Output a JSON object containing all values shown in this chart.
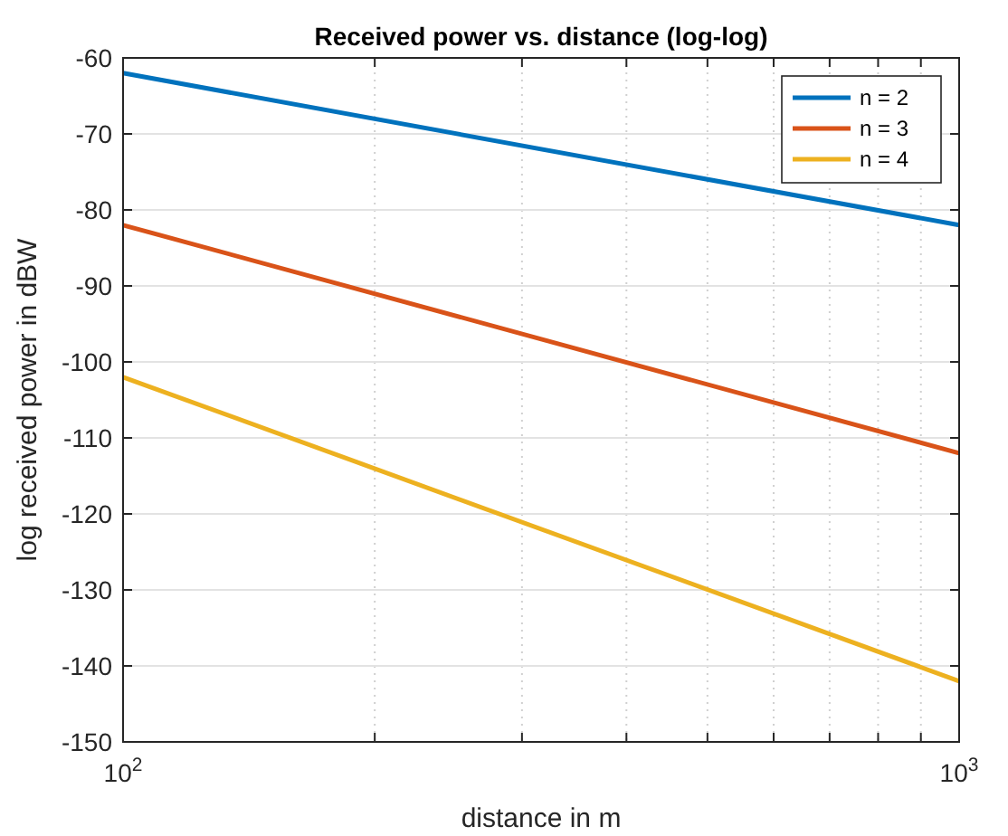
{
  "chart_data": {
    "type": "line",
    "title": "Received power vs. distance (log-log)",
    "xlabel": "distance in m",
    "ylabel": "log received power in dBW",
    "log": "x",
    "x": [
      100,
      1000
    ],
    "series": [
      {
        "name": "n = 2",
        "color": "#0072bd",
        "values": [
          -62,
          -82
        ]
      },
      {
        "name": "n = 3",
        "color": "#d95319",
        "values": [
          -82,
          -112
        ]
      },
      {
        "name": "n = 4",
        "color": "#edb120",
        "values": [
          -102,
          -142
        ]
      }
    ],
    "xlim": [
      100,
      1000
    ],
    "xticks": [
      {
        "value": 100,
        "label": "10$^{2}$"
      },
      {
        "value": 200,
        "label": null
      },
      {
        "value": 300,
        "label": null
      },
      {
        "value": 400,
        "label": null
      },
      {
        "value": 500,
        "label": null
      },
      {
        "value": 600,
        "label": null
      },
      {
        "value": 700,
        "label": null
      },
      {
        "value": 800,
        "label": null
      },
      {
        "value": 900,
        "label": null
      },
      {
        "value": 1000,
        "label": "10$^{3}$"
      }
    ],
    "ylim": [
      -150,
      -60
    ],
    "yticks": [
      -150,
      -140,
      -130,
      -120,
      -110,
      -100,
      -90,
      -80,
      -70,
      -60
    ],
    "grid": true,
    "legend": "top right",
    "line_style": "solid",
    "marker": "none"
  }
}
